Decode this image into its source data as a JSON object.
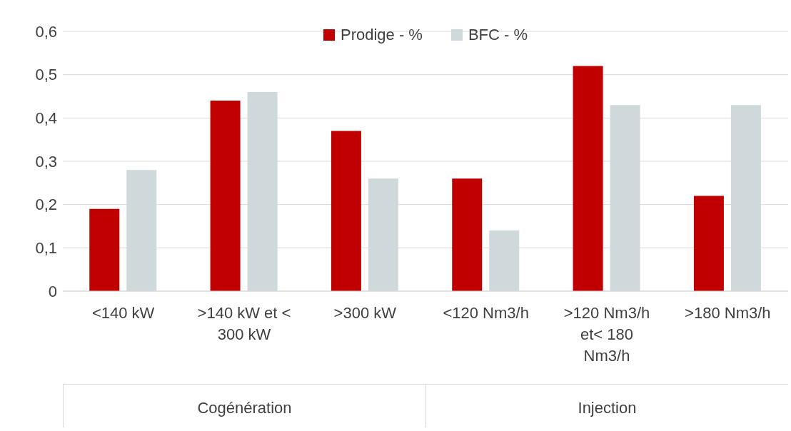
{
  "chart_data": {
    "type": "bar",
    "categories": [
      "<140 kW",
      ">140 kW et < 300 kW",
      ">300 kW",
      "<120 Nm3/h",
      ">120 Nm3/h et< 180 Nm3/h",
      ">180 Nm3/h"
    ],
    "series": [
      {
        "name": "Prodige - %",
        "color": "#c00000",
        "values": [
          0.19,
          0.44,
          0.37,
          0.26,
          0.52,
          0.22
        ]
      },
      {
        "name": "BFC - %",
        "color": "#cfd9dc",
        "values": [
          0.28,
          0.46,
          0.26,
          0.14,
          0.43,
          0.43
        ]
      }
    ],
    "ylim": [
      0,
      0.6
    ],
    "yticks": [
      0,
      {
        "value": 0.1,
        "label": "0,1"
      },
      {
        "value": 0.2,
        "label": "0,2"
      },
      {
        "value": 0.3,
        "label": "0,3"
      },
      {
        "value": 0.4,
        "label": "0,4"
      },
      {
        "value": 0.5,
        "label": "0,5"
      },
      {
        "value": 0.6,
        "label": "0,6"
      }
    ],
    "annotations": [
      "Cogénération",
      "Injection"
    ],
    "grid": "y",
    "legend": "top"
  }
}
